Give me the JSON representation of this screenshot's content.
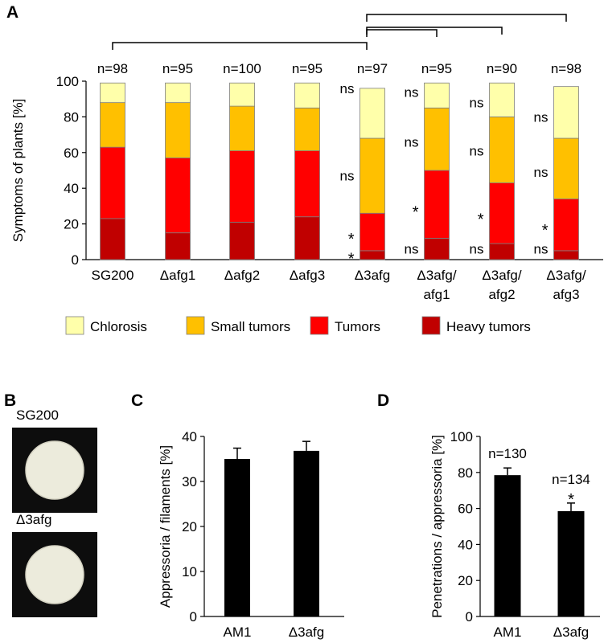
{
  "panels": {
    "a": "A",
    "b": "B",
    "c": "C",
    "d": "D"
  },
  "colors": {
    "chlorosis": "#FFFFAA",
    "small": "#FFC000",
    "tumors": "#FF0000",
    "heavy": "#C00000",
    "stroke": "#7f7f7f",
    "bar": "#000000"
  },
  "chart_data": [
    {
      "id": "A",
      "type": "bar",
      "stacked": true,
      "ylabel": "Symptoms of plants [%]",
      "ylim": [
        0,
        100
      ],
      "yticks": [
        0,
        20,
        40,
        60,
        80,
        100
      ],
      "categories": [
        [
          "SG200"
        ],
        [
          "Δafg1"
        ],
        [
          "Δafg2"
        ],
        [
          "Δafg3"
        ],
        [
          "Δ3afg"
        ],
        [
          "Δ3afg/",
          "afg1"
        ],
        [
          "Δ3afg/",
          "afg2"
        ],
        [
          "Δ3afg/",
          "afg3"
        ]
      ],
      "n_labels": [
        "n=98",
        "n=95",
        "n=100",
        "n=95",
        "n=97",
        "n=95",
        "n=90",
        "n=98"
      ],
      "series": [
        {
          "name": "Heavy tumors",
          "key": "heavy",
          "values": [
            23,
            15,
            21,
            24,
            5,
            12,
            9,
            5
          ]
        },
        {
          "name": "Tumors",
          "key": "tumors",
          "values": [
            40,
            42,
            40,
            37,
            21,
            38,
            34,
            29
          ]
        },
        {
          "name": "Small tumors",
          "key": "small",
          "values": [
            25,
            31,
            25,
            24,
            42,
            35,
            37,
            34
          ]
        },
        {
          "name": "Chlorosis",
          "key": "chlorosis",
          "values": [
            11,
            11,
            13,
            14,
            28,
            14,
            19,
            29
          ]
        }
      ],
      "legend_order": [
        "Chlorosis",
        "Small tumors",
        "Tumors",
        "Heavy tumors"
      ],
      "legend": "bottom",
      "annotations": [
        {
          "bar": 4,
          "side": "left",
          "y": 96,
          "text": "ns"
        },
        {
          "bar": 4,
          "side": "left",
          "y": 47,
          "text": "ns"
        },
        {
          "bar": 4,
          "side": "left",
          "y": 14,
          "text": "*"
        },
        {
          "bar": 4,
          "side": "left",
          "y": 3,
          "text": "*"
        },
        {
          "bar": 5,
          "side": "left",
          "y": 94,
          "text": "ns"
        },
        {
          "bar": 5,
          "side": "left",
          "y": 66,
          "text": "ns"
        },
        {
          "bar": 5,
          "side": "left",
          "y": 29,
          "text": "*"
        },
        {
          "bar": 5,
          "side": "left",
          "y": 6,
          "text": "ns"
        },
        {
          "bar": 6,
          "side": "left",
          "y": 88,
          "text": "ns"
        },
        {
          "bar": 6,
          "side": "left",
          "y": 61,
          "text": "ns"
        },
        {
          "bar": 6,
          "side": "left",
          "y": 25,
          "text": "*"
        },
        {
          "bar": 6,
          "side": "left",
          "y": 6,
          "text": "ns"
        },
        {
          "bar": 7,
          "side": "left",
          "y": 80,
          "text": "ns"
        },
        {
          "bar": 7,
          "side": "left",
          "y": 49,
          "text": "ns"
        },
        {
          "bar": 7,
          "side": "left",
          "y": 19,
          "text": "*"
        },
        {
          "bar": 7,
          "side": "left",
          "y": 6,
          "text": "ns"
        }
      ],
      "comparisons": [
        {
          "from": 0,
          "to": 4
        },
        {
          "from": 4,
          "to": 5
        },
        {
          "from": 4,
          "to": 6
        },
        {
          "from": 4,
          "to": 7
        }
      ]
    },
    {
      "id": "B",
      "type": "image",
      "labels": [
        "SG200",
        "Δ3afg"
      ]
    },
    {
      "id": "C",
      "type": "bar",
      "ylabel": "Appressoria / filaments [%]",
      "ylim": [
        0,
        40
      ],
      "yticks": [
        0,
        10,
        20,
        30,
        40
      ],
      "categories": [
        "AM1",
        "Δ3afg"
      ],
      "values": [
        35,
        36.8
      ],
      "errors": [
        2.4,
        2.1
      ]
    },
    {
      "id": "D",
      "type": "bar",
      "ylabel": "Penetrations / appressoria [%]",
      "ylim": [
        0,
        100
      ],
      "yticks": [
        0,
        20,
        40,
        60,
        80,
        100
      ],
      "categories": [
        "AM1",
        "Δ3afg"
      ],
      "values": [
        78.5,
        58.5
      ],
      "errors": [
        4,
        4.5
      ],
      "n_labels": [
        "n=130",
        "n=134"
      ],
      "marks": [
        "",
        "*"
      ]
    }
  ]
}
